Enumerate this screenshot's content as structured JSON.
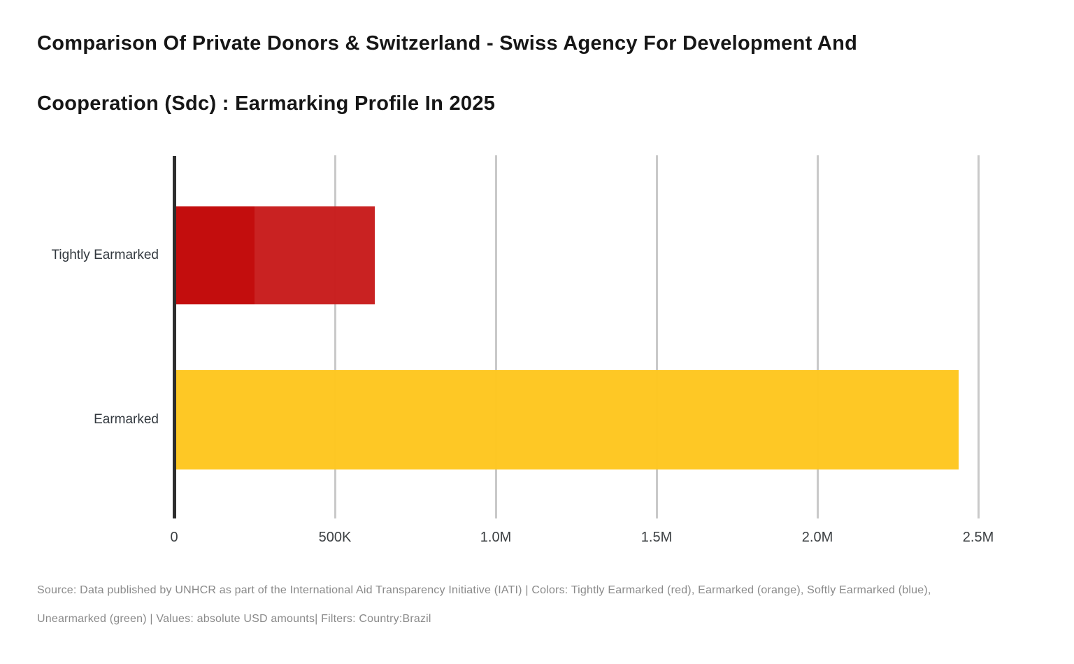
{
  "header": {
    "line1": "Comparison Of Private Donors & Switzerland - Swiss Agency For Development And",
    "line2": "Cooperation (Sdc) : Earmarking Profile In 2025"
  },
  "chart_data": {
    "type": "bar",
    "orientation": "horizontal",
    "title": "Comparison Of Private Donors & Switzerland - Swiss Agency For Development And Cooperation (Sdc) : Earmarking Profile In 2025",
    "units": "absolute USD amounts",
    "categories": [
      "Tightly Earmarked",
      "Earmarked"
    ],
    "bars": [
      {
        "category": "Tightly Earmarked",
        "total": 624000,
        "segments": [
          {
            "value": 250000,
            "color": "#c10505"
          },
          {
            "value": 374000,
            "color": "#c71b1b"
          }
        ]
      },
      {
        "category": "Earmarked",
        "total": 2440000,
        "segments": [
          {
            "value": 2440000,
            "color": "#fec61e"
          }
        ]
      }
    ],
    "x_axis": {
      "min": 0,
      "max": 2500000,
      "ticks": [
        {
          "value": 0,
          "label": "0"
        },
        {
          "value": 500000,
          "label": "500K"
        },
        {
          "value": 1000000,
          "label": "1.0M"
        },
        {
          "value": 1500000,
          "label": "1.5M"
        },
        {
          "value": 2000000,
          "label": "2.0M"
        },
        {
          "value": 2500000,
          "label": "2.5M"
        }
      ]
    },
    "grid": true,
    "legend": false,
    "colors": {
      "tightly_earmarked_dark": "#c10505",
      "tightly_earmarked_light": "#c71b1b",
      "earmarked_orange": "#fec61e",
      "axis": "#2e2e2e",
      "gridline": "#c9c9c9"
    }
  },
  "footer": {
    "line1": "Source: Data published by UNHCR as part of the International Aid Transparency Initiative (IATI) | Colors: Tightly Earmarked (red), Earmarked (orange), Softly Earmarked (blue),",
    "line2": "Unearmarked (green) | Values: absolute USD amounts| Filters: Country:Brazil"
  }
}
